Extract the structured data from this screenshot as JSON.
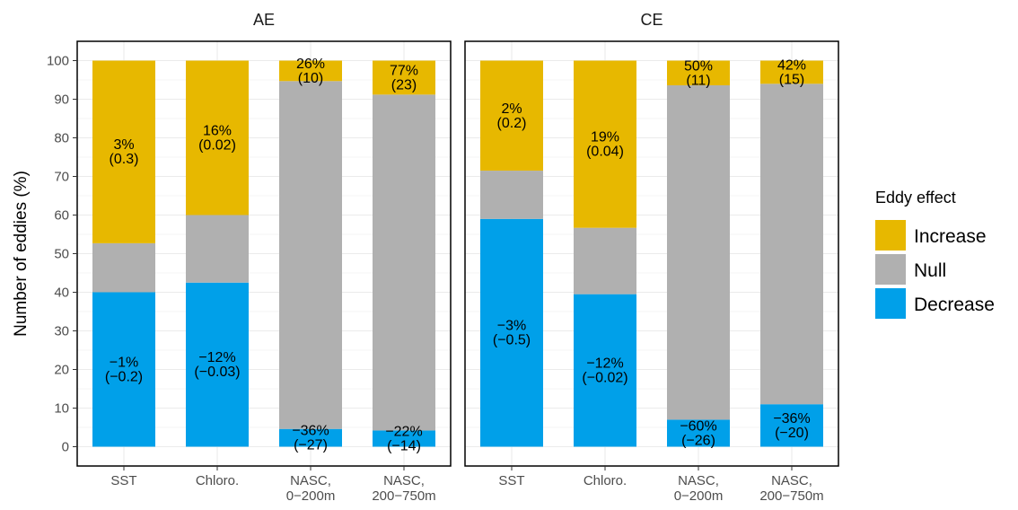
{
  "chart_data": {
    "type": "bar",
    "stacked": true,
    "ylabel": "Number of eddies (%)",
    "ylim": [
      0,
      100
    ],
    "yticks": [
      0,
      10,
      20,
      30,
      40,
      50,
      60,
      70,
      80,
      90,
      100
    ],
    "grid": true,
    "legend": {
      "title": "Eddy effect",
      "placement": "right",
      "entries": [
        {
          "name": "Increase",
          "color": "#E7B800"
        },
        {
          "name": "Null",
          "color": "#B0B0B0"
        },
        {
          "name": "Decrease",
          "color": "#00A0E9"
        }
      ]
    },
    "categories": [
      [
        "SST"
      ],
      [
        "Chloro."
      ],
      [
        "NASC,",
        "0−200m"
      ],
      [
        "NASC,",
        "200−750m"
      ]
    ],
    "panels": [
      {
        "title": "AE",
        "bars": [
          {
            "decrease": 40,
            "null": 12.7,
            "increase": 47.3,
            "decrease_label": [
              "−1%",
              "(−0.2)"
            ],
            "increase_label": [
              "3%",
              "(0.3)"
            ]
          },
          {
            "decrease": 42.5,
            "null": 17.5,
            "increase": 40,
            "decrease_label": [
              "−12%",
              "(−0.03)"
            ],
            "increase_label": [
              "16%",
              "(0.02)"
            ]
          },
          {
            "decrease": 4.6,
            "null": 90.1,
            "increase": 5.3,
            "decrease_label": [
              "−36%",
              "(−27)"
            ],
            "increase_label": [
              "26%",
              "(10)"
            ]
          },
          {
            "decrease": 4.2,
            "null": 87.0,
            "increase": 8.8,
            "decrease_label": [
              "−22%",
              "(−14)"
            ],
            "increase_label": [
              "77%",
              "(23)"
            ]
          }
        ]
      },
      {
        "title": "CE",
        "bars": [
          {
            "decrease": 59,
            "null": 12.5,
            "increase": 28.5,
            "decrease_label": [
              "−3%",
              "(−0.5)"
            ],
            "increase_label": [
              "2%",
              "(0.2)"
            ]
          },
          {
            "decrease": 39.5,
            "null": 17.2,
            "increase": 43.3,
            "decrease_label": [
              "−12%",
              "(−0.02)"
            ],
            "increase_label": [
              "19%",
              "(0.04)"
            ]
          },
          {
            "decrease": 7.0,
            "null": 86.6,
            "increase": 6.4,
            "decrease_label": [
              "−60%",
              "(−26)"
            ],
            "increase_label": [
              "50%",
              "(11)"
            ]
          },
          {
            "decrease": 11.0,
            "null": 83.0,
            "increase": 6.0,
            "decrease_label": [
              "−36%",
              "(−20)"
            ],
            "increase_label": [
              "42%",
              "(15)"
            ]
          }
        ]
      }
    ]
  }
}
